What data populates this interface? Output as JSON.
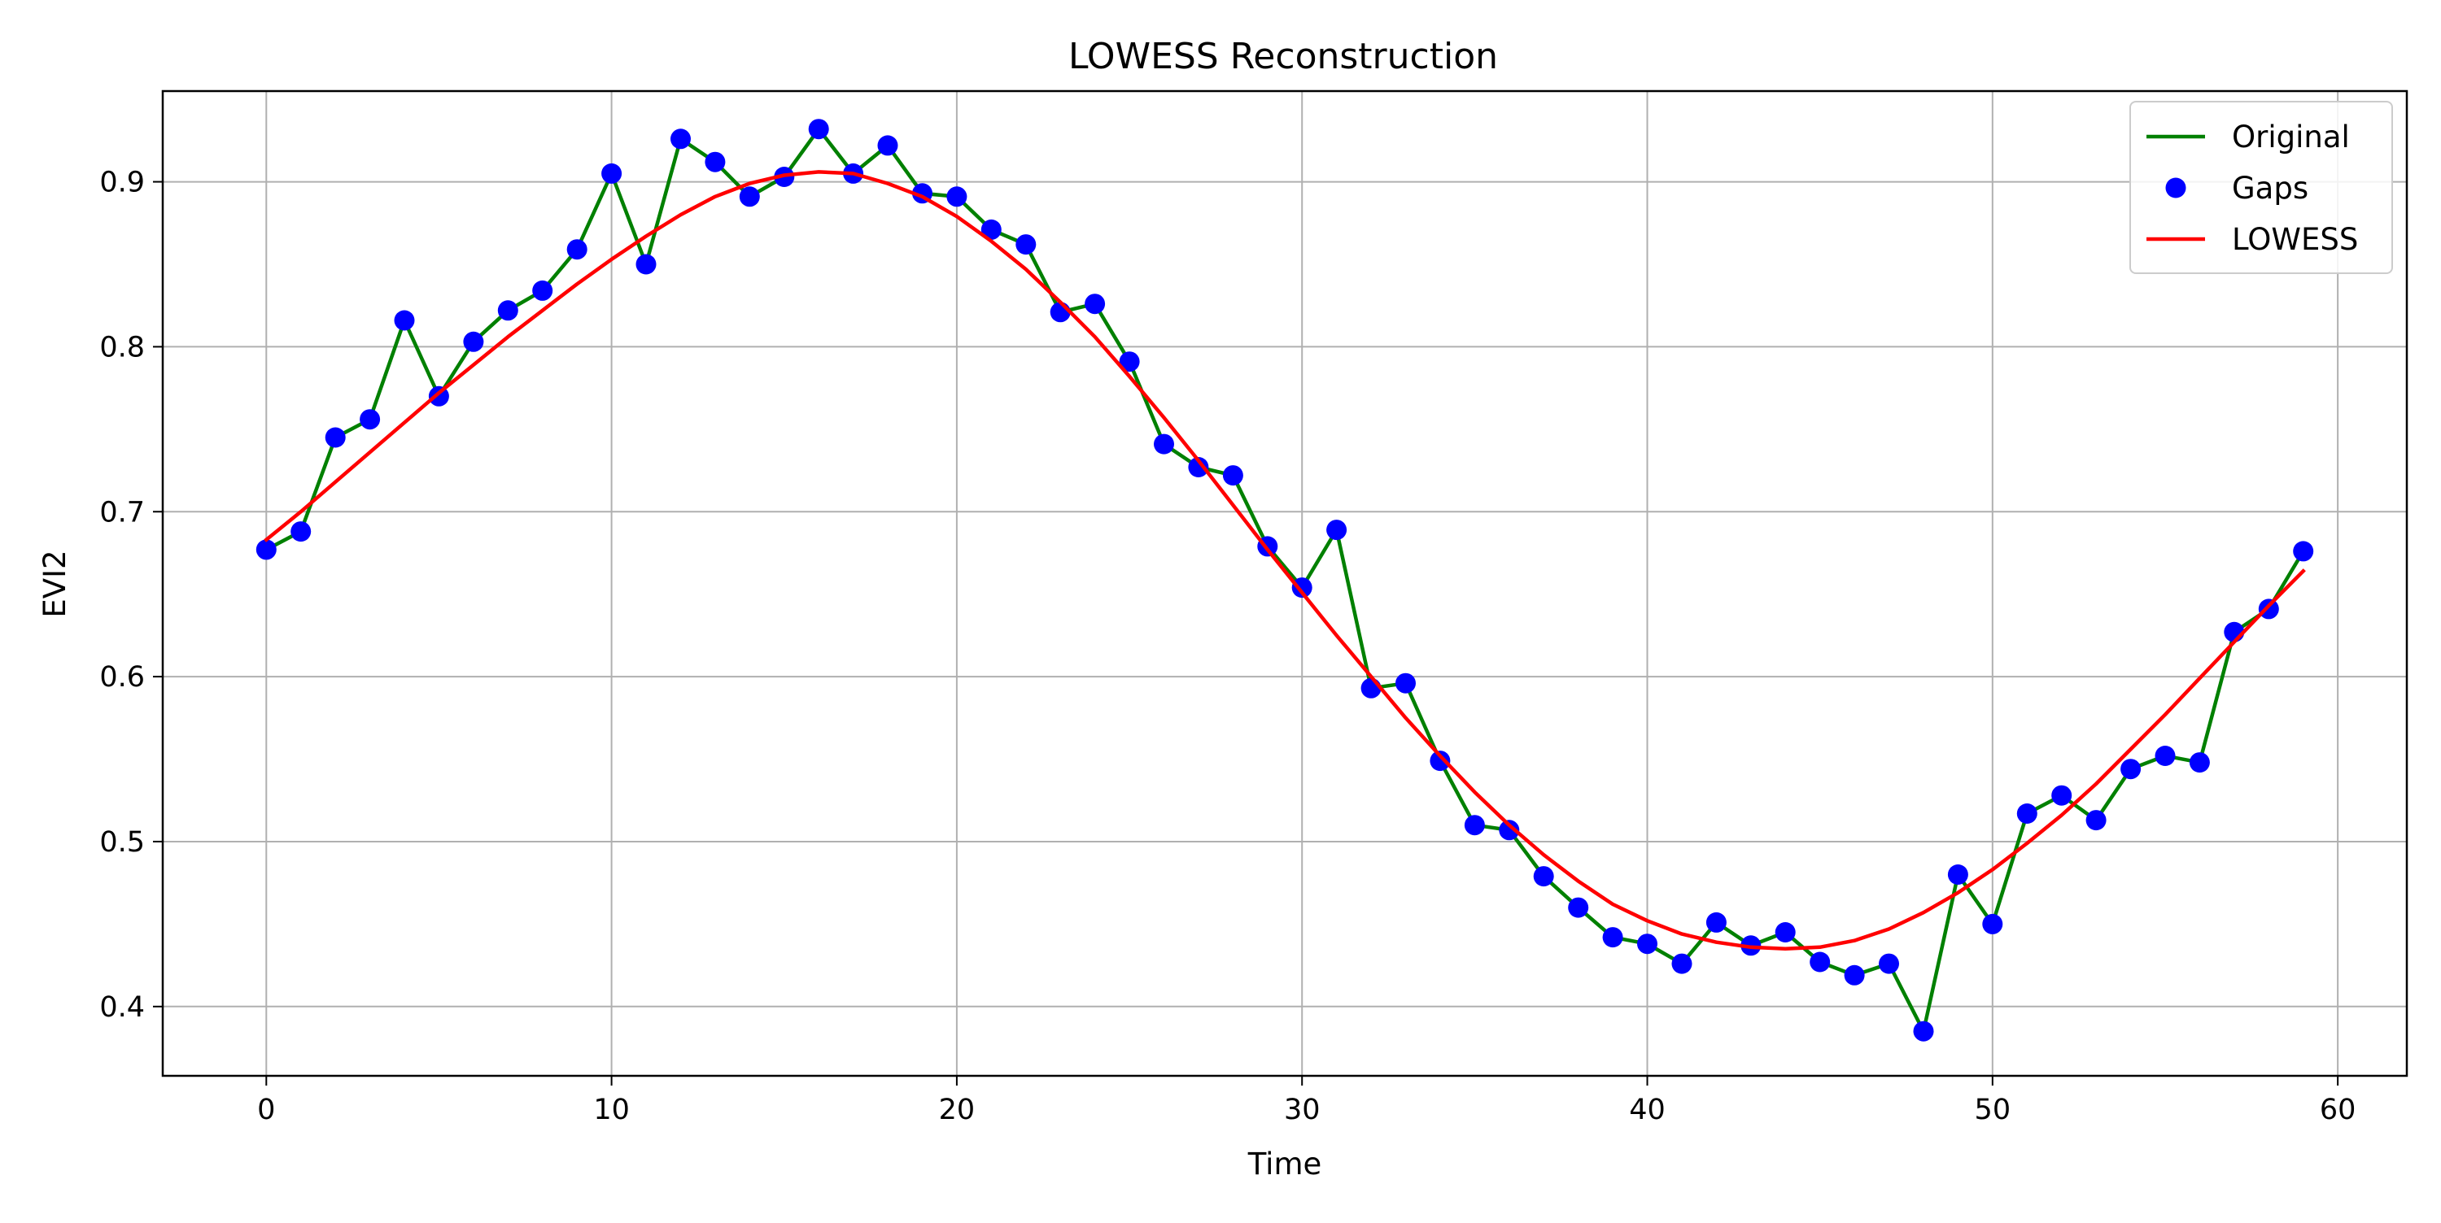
{
  "chart_data": {
    "type": "line",
    "title": "LOWESS Reconstruction",
    "xlabel": "Time",
    "ylabel": "EVI2",
    "xlim": [
      -3,
      62
    ],
    "ylim": [
      0.358,
      0.955
    ],
    "xticks": [
      0,
      10,
      20,
      30,
      40,
      50,
      60
    ],
    "yticks": [
      0.4,
      0.5,
      0.6,
      0.7,
      0.8,
      0.9
    ],
    "grid": true,
    "legend_position": "top-right",
    "x": [
      0,
      1,
      2,
      3,
      4,
      5,
      6,
      7,
      8,
      9,
      10,
      11,
      12,
      13,
      14,
      15,
      16,
      17,
      18,
      19,
      20,
      21,
      22,
      23,
      24,
      25,
      26,
      27,
      28,
      29,
      30,
      31,
      32,
      33,
      34,
      35,
      36,
      37,
      38,
      39,
      40,
      41,
      42,
      43,
      44,
      45,
      46,
      47,
      48,
      49,
      50,
      51,
      52,
      53,
      54,
      55,
      56,
      57,
      58,
      59
    ],
    "series": [
      {
        "name": "Original",
        "kind": "line",
        "color": "#008000",
        "values": [
          0.677,
          0.688,
          0.745,
          0.756,
          0.816,
          0.77,
          0.803,
          0.822,
          0.834,
          0.859,
          0.905,
          0.85,
          0.926,
          0.912,
          0.891,
          0.903,
          0.932,
          0.905,
          0.922,
          0.893,
          0.891,
          0.871,
          0.862,
          0.821,
          0.826,
          0.791,
          0.741,
          0.727,
          0.722,
          0.679,
          0.654,
          0.689,
          0.593,
          0.596,
          0.549,
          0.51,
          0.507,
          0.479,
          0.46,
          0.442,
          0.438,
          0.426,
          0.451,
          0.437,
          0.445,
          0.427,
          0.419,
          0.426,
          0.385,
          0.48,
          0.45,
          0.517,
          0.528,
          0.513,
          0.544,
          0.552,
          0.548,
          0.627,
          0.641,
          0.676
        ]
      },
      {
        "name": "Gaps",
        "kind": "markers",
        "color": "#0000ff",
        "values": [
          0.677,
          0.688,
          0.745,
          0.756,
          0.816,
          0.77,
          0.803,
          0.822,
          0.834,
          0.859,
          0.905,
          0.85,
          0.926,
          0.912,
          0.891,
          0.903,
          0.932,
          0.905,
          0.922,
          0.893,
          0.891,
          0.871,
          0.862,
          0.821,
          0.826,
          0.791,
          0.741,
          0.727,
          0.722,
          0.679,
          0.654,
          0.689,
          0.593,
          0.596,
          0.549,
          0.51,
          0.507,
          0.479,
          0.46,
          0.442,
          0.438,
          0.426,
          0.451,
          0.437,
          0.445,
          0.427,
          0.419,
          0.426,
          0.385,
          0.48,
          0.45,
          0.517,
          0.528,
          0.513,
          0.544,
          0.552,
          0.548,
          0.627,
          0.641,
          0.676
        ]
      },
      {
        "name": "LOWESS",
        "kind": "line",
        "color": "#ff0000",
        "values": [
          0.683,
          0.7,
          0.718,
          0.736,
          0.754,
          0.772,
          0.789,
          0.806,
          0.822,
          0.838,
          0.853,
          0.867,
          0.88,
          0.891,
          0.899,
          0.904,
          0.906,
          0.905,
          0.899,
          0.891,
          0.879,
          0.864,
          0.847,
          0.827,
          0.806,
          0.782,
          0.757,
          0.731,
          0.704,
          0.677,
          0.651,
          0.625,
          0.6,
          0.575,
          0.552,
          0.53,
          0.51,
          0.492,
          0.476,
          0.462,
          0.452,
          0.444,
          0.439,
          0.436,
          0.435,
          0.436,
          0.44,
          0.447,
          0.457,
          0.469,
          0.483,
          0.499,
          0.516,
          0.535,
          0.556,
          0.577,
          0.599,
          0.621,
          0.643,
          0.664
        ]
      }
    ]
  }
}
